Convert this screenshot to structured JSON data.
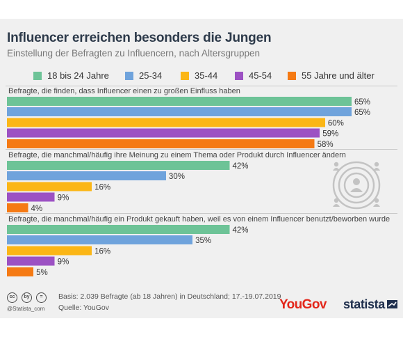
{
  "header": {
    "title": "Influencer erreichen besonders die Jungen",
    "subtitle": "Einstellung der Befragten zu Influencern, nach Altersgruppen"
  },
  "legend": [
    {
      "label": "18 bis 24 Jahre",
      "color": "#6dc397"
    },
    {
      "label": "25-34",
      "color": "#6fa3dc"
    },
    {
      "label": "35-44",
      "color": "#fbb616"
    },
    {
      "label": "45-54",
      "color": "#9c51c3"
    },
    {
      "label": "55 Jahre und älter",
      "color": "#f57a14"
    }
  ],
  "chart_data": {
    "type": "bar",
    "orientation": "horizontal",
    "value_unit": "%",
    "series_names": [
      "18 bis 24 Jahre",
      "25-34",
      "35-44",
      "45-54",
      "55 Jahre und älter"
    ],
    "groups": [
      {
        "label": "Befragte, die finden, dass Influencer einen zu großen Einfluss haben",
        "values": [
          65,
          65,
          60,
          59,
          58
        ]
      },
      {
        "label": "Befragte, die manchmal/häufig ihre Meinung zu einem Thema oder Produkt durch Influencer ändern",
        "values": [
          42,
          30,
          16,
          9,
          4
        ]
      },
      {
        "label": "Befragte, die manchmal/häufig ein Produkt gekauft haben, weil es von einem Influencer benutzt/beworben wurde",
        "values": [
          42,
          35,
          16,
          9,
          5
        ]
      }
    ],
    "xlim": [
      0,
      65
    ],
    "grid": false,
    "legend_position": "top"
  },
  "footer": {
    "basis": "Basis: 2.039 Befragte (ab 18 Jahren) in Deutschland; 17.-19.07.2019",
    "source": "Quelle: YouGov",
    "handle": "@Statista_com",
    "cc_icons": [
      "cc",
      "by",
      "="
    ],
    "brand_yougov": "YouGov",
    "brand_statista": "statista"
  },
  "icon": {
    "name": "influencer-audience-icon"
  }
}
